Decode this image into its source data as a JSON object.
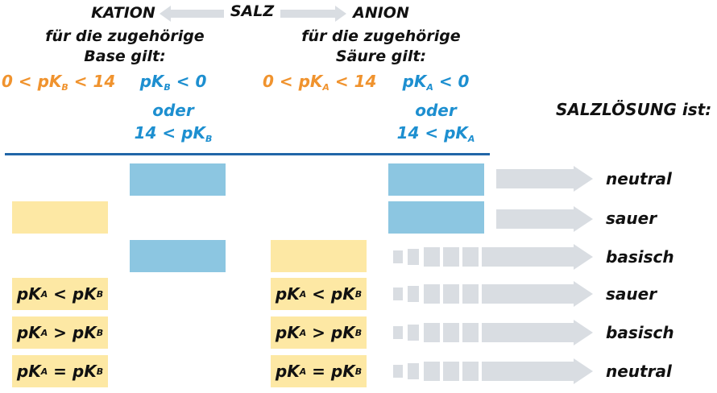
{
  "header": {
    "kation": "KATION",
    "salz": "SALZ",
    "anion": "ANION",
    "kation_sub1": "für die zugehörige",
    "kation_sub2": "Base gilt:",
    "anion_sub1": "für die zugehörige",
    "anion_sub2": "Säure gilt:",
    "result_title": "SALZLÖSUNG ist:"
  },
  "conditions": {
    "kation_orange": {
      "pre": "0 < pK",
      "sub": "B",
      "post": " < 14"
    },
    "kation_blue_1": {
      "pre": "pK",
      "sub": "B",
      "post": " < 0"
    },
    "kation_blue_or": "oder",
    "kation_blue_3": {
      "pre": "14 < pK",
      "sub": "B",
      "post": ""
    },
    "anion_orange": {
      "pre": "0 < pK",
      "sub": "A",
      "post": " < 14"
    },
    "anion_blue_1": {
      "pre": "pK",
      "sub": "A",
      "post": " < 0"
    },
    "anion_blue_or": "oder",
    "anion_blue_3": {
      "pre": "14 < pK",
      "sub": "A",
      "post": ""
    }
  },
  "rows": [
    {
      "result": "neutral",
      "arrow": "solid"
    },
    {
      "result": "sauer",
      "arrow": "solid"
    },
    {
      "result": "basisch",
      "arrow": "dashed"
    },
    {
      "result": "sauer",
      "arrow": "dashed",
      "kation": {
        "a": "pK",
        "sa": "A",
        "op": " < ",
        "b": "pK",
        "sb": "B"
      },
      "anion": {
        "a": "pK",
        "sa": "A",
        "op": " < ",
        "b": "pK",
        "sb": "B"
      }
    },
    {
      "result": "basisch",
      "arrow": "dashed",
      "kation": {
        "a": "pK",
        "sa": "A",
        "op": " > ",
        "b": "pK",
        "sb": "B"
      },
      "anion": {
        "a": "pK",
        "sa": "A",
        "op": " > ",
        "b": "pK",
        "sb": "B"
      }
    },
    {
      "result": "neutral",
      "arrow": "dashed",
      "kation": {
        "a": "pK",
        "sa": "A",
        "op": " = ",
        "b": "pK",
        "sb": "B"
      },
      "anion": {
        "a": "pK",
        "sa": "A",
        "op": " = ",
        "b": "pK",
        "sb": "B"
      }
    }
  ],
  "colors": {
    "orange": "#f0932e",
    "blue_text": "#1d8fd0",
    "blue_box": "#8cc6e1",
    "yellow_box": "#fde8a4",
    "arrow_gray": "#d9dde2",
    "rule": "#2166a8"
  }
}
